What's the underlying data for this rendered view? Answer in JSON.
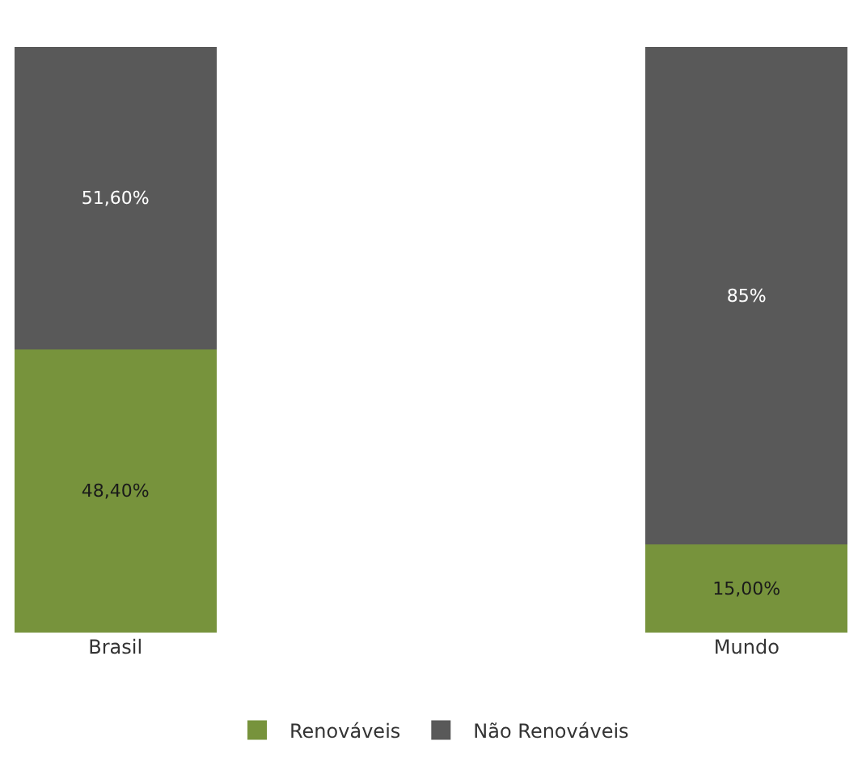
{
  "chart_data": {
    "type": "bar",
    "stacked": true,
    "categories": [
      "Brasil",
      "Mundo"
    ],
    "series": [
      {
        "name": "Renováveis",
        "color": "#77933c",
        "values": [
          48.4,
          15.0
        ],
        "value_labels": [
          "48,40%",
          "15,00%"
        ]
      },
      {
        "name": "Não Renováveis",
        "color": "#595959",
        "values": [
          51.6,
          85
        ],
        "value_labels": [
          "51,60%",
          "85%"
        ]
      }
    ],
    "legend": "bottom",
    "tick_labels": "x"
  }
}
